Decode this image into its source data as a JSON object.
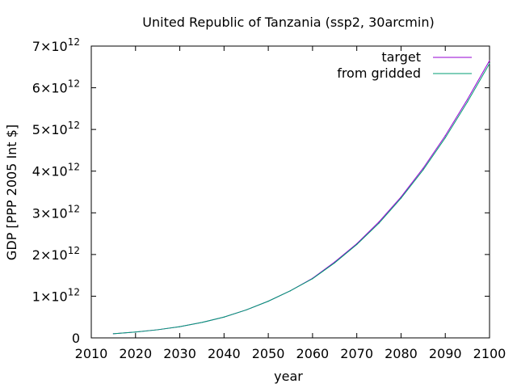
{
  "chart_data": {
    "type": "line",
    "title": "United Republic of Tanzania (ssp2, 30arcmin)",
    "xlabel": "year",
    "ylabel": "GDP [PPP 2005 Int $]",
    "xlim": [
      2010,
      2100
    ],
    "ylim": [
      0,
      7000000000000.0
    ],
    "x_ticks": [
      2010,
      2020,
      2030,
      2040,
      2050,
      2060,
      2070,
      2080,
      2090,
      2100
    ],
    "y_ticks": [
      {
        "value": 0,
        "mantissa": "0",
        "exponent": ""
      },
      {
        "value": 1000000000000.0,
        "mantissa": "1×10",
        "exponent": "12"
      },
      {
        "value": 2000000000000.0,
        "mantissa": "2×10",
        "exponent": "12"
      },
      {
        "value": 3000000000000.0,
        "mantissa": "3×10",
        "exponent": "12"
      },
      {
        "value": 4000000000000.0,
        "mantissa": "4×10",
        "exponent": "12"
      },
      {
        "value": 5000000000000.0,
        "mantissa": "5×10",
        "exponent": "12"
      },
      {
        "value": 6000000000000.0,
        "mantissa": "6×10",
        "exponent": "12"
      },
      {
        "value": 7000000000000.0,
        "mantissa": "7×10",
        "exponent": "12"
      }
    ],
    "legend_position": "top-right",
    "grid": false,
    "x": [
      2015,
      2020,
      2025,
      2030,
      2035,
      2040,
      2045,
      2050,
      2055,
      2060,
      2065,
      2070,
      2075,
      2080,
      2085,
      2090,
      2095,
      2100
    ],
    "series": [
      {
        "name": "target",
        "color": "#9400d3",
        "values": [
          100000000000.0,
          140000000000.0,
          195000000000.0,
          270000000000.0,
          370000000000.0,
          500000000000.0,
          670000000000.0,
          880000000000.0,
          1130000000000.0,
          1430000000000.0,
          1820000000000.0,
          2260000000000.0,
          2780000000000.0,
          3380000000000.0,
          4070000000000.0,
          4850000000000.0,
          5720000000000.0,
          6650000000000.0
        ]
      },
      {
        "name": "from gridded",
        "color": "#009e73",
        "values": [
          100000000000.0,
          140000000000.0,
          195000000000.0,
          270000000000.0,
          370000000000.0,
          500000000000.0,
          670000000000.0,
          880000000000.0,
          1130000000000.0,
          1420000000000.0,
          1800000000000.0,
          2240000000000.0,
          2750000000000.0,
          3350000000000.0,
          4030000000000.0,
          4800000000000.0,
          5660000000000.0,
          6580000000000.0
        ]
      }
    ]
  }
}
